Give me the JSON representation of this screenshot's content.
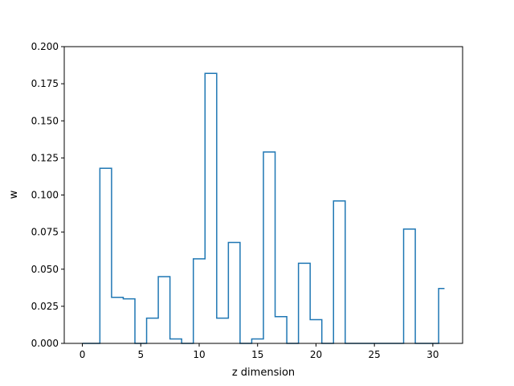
{
  "chart_data": {
    "type": "line",
    "style": "step-mid",
    "x": [
      0,
      1,
      2,
      3,
      4,
      5,
      6,
      7,
      8,
      9,
      10,
      11,
      12,
      13,
      14,
      15,
      16,
      17,
      18,
      19,
      20,
      21,
      22,
      23,
      24,
      25,
      26,
      27,
      28,
      29,
      30,
      31
    ],
    "y": [
      0.0,
      0.0,
      0.118,
      0.031,
      0.03,
      0.0,
      0.017,
      0.045,
      0.003,
      0.0,
      0.057,
      0.182,
      0.017,
      0.068,
      0.0,
      0.003,
      0.129,
      0.018,
      0.0,
      0.054,
      0.016,
      0.0,
      0.096,
      0.0,
      0.0,
      0.0,
      0.0,
      0.0,
      0.077,
      0.0,
      0.0,
      0.037
    ],
    "title": "",
    "xlabel": "z dimension",
    "ylabel": "w",
    "xlim": [
      -1.55,
      32.55
    ],
    "ylim": [
      0.0,
      0.2
    ],
    "xticks": [
      0,
      5,
      10,
      15,
      20,
      25,
      30
    ],
    "yticks": [
      "0.000",
      "0.025",
      "0.050",
      "0.075",
      "0.100",
      "0.125",
      "0.150",
      "0.175",
      "0.200"
    ],
    "grid": false,
    "line_color": "#1f77b4"
  }
}
